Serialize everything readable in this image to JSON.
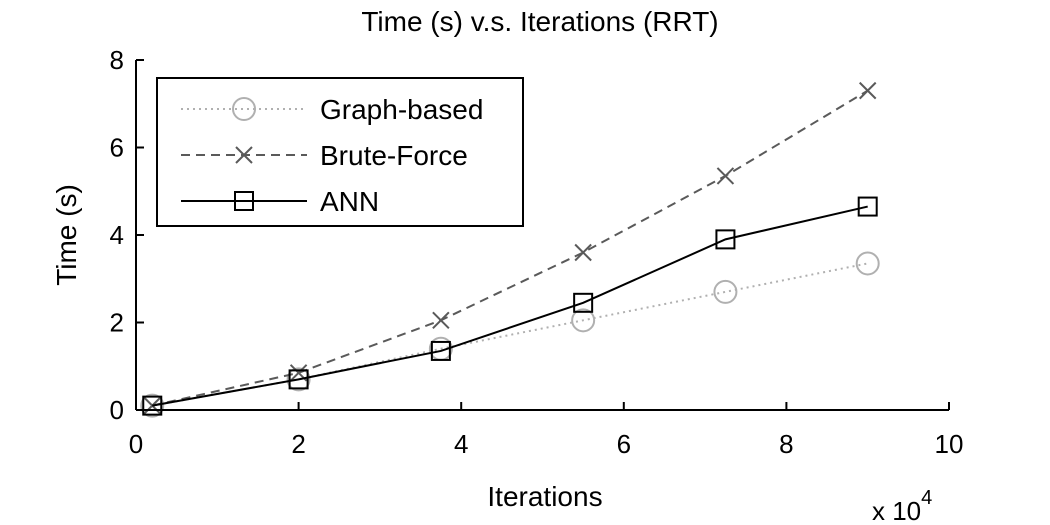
{
  "chart_data": {
    "type": "line",
    "title": "Time (s) v.s. Iterations (RRT)",
    "xlabel": "Iterations",
    "ylabel": "Time (s)",
    "x_multiplier_label": "x 10",
    "x_multiplier_exponent": "4",
    "xlim": [
      0,
      100000
    ],
    "ylim": [
      0,
      8
    ],
    "x_ticks": [
      0,
      20000,
      40000,
      60000,
      80000,
      100000
    ],
    "x_tick_labels": [
      "0",
      "2",
      "4",
      "6",
      "8",
      "10"
    ],
    "y_ticks": [
      0,
      2,
      4,
      6,
      8
    ],
    "y_tick_labels": [
      "0",
      "2",
      "4",
      "6",
      "8"
    ],
    "grid": false,
    "legend_position": "top-left",
    "x": [
      2000,
      20000,
      37500,
      55000,
      72500,
      90000
    ],
    "series": [
      {
        "name": "Graph-based",
        "values": [
          0.1,
          0.7,
          1.4,
          2.05,
          2.7,
          3.35
        ],
        "color": "#b0b0b0",
        "line_style": "dotted",
        "marker": "circle"
      },
      {
        "name": "Brute-Force",
        "values": [
          0.1,
          0.85,
          2.05,
          3.6,
          5.35,
          7.3
        ],
        "color": "#5a5a5a",
        "line_style": "dashed",
        "marker": "x"
      },
      {
        "name": "ANN",
        "values": [
          0.1,
          0.7,
          1.35,
          2.45,
          3.9,
          4.65
        ],
        "color": "#000000",
        "line_style": "solid",
        "marker": "square"
      }
    ]
  }
}
